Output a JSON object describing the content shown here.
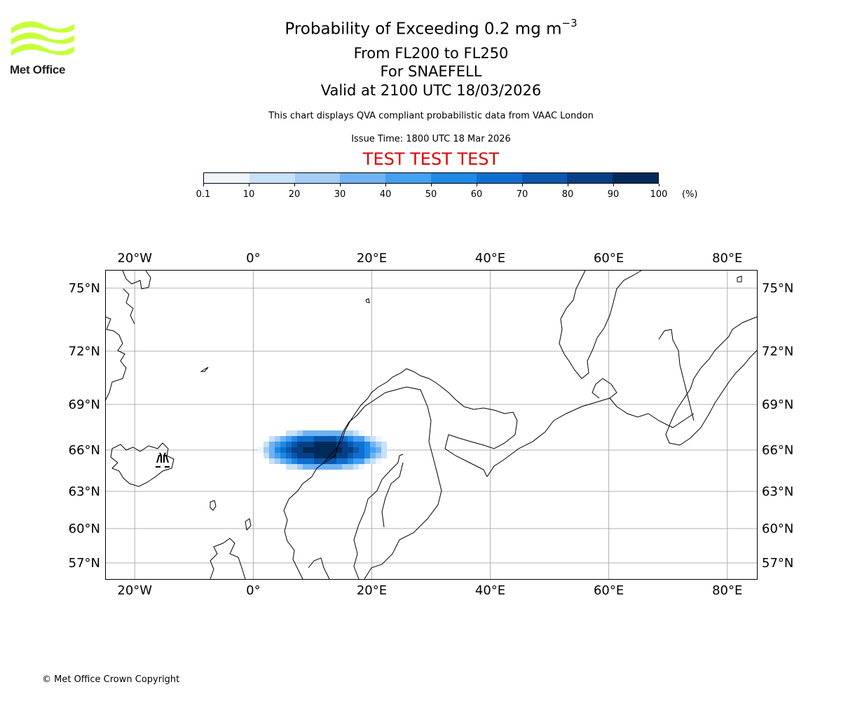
{
  "branding": {
    "logo_text": "Met Office"
  },
  "header": {
    "title": "Probability of Exceeding 0.2 mg m",
    "title_superscript": "−3",
    "flight_levels": "From FL200 to FL250",
    "volcano": "For SNAEFELL",
    "valid_time": "Valid at 2100 UTC 18/03/2026",
    "description": "This chart displays QVA compliant probabilistic data from VAAC London",
    "issue_time": "Issue Time: 1800 UTC 18 Mar 2026",
    "test_banner": "TEST TEST TEST"
  },
  "colorbar": {
    "unit": "(%)",
    "ticks": [
      "0.1",
      "10",
      "20",
      "30",
      "40",
      "50",
      "60",
      "70",
      "80",
      "90",
      "100"
    ],
    "colors": [
      "#eef5fd",
      "#c8e0f8",
      "#a2cdf5",
      "#6fb3f2",
      "#44a0f0",
      "#1e88e5",
      "#0f6fd0",
      "#0a57ad",
      "#063f85",
      "#012a5a"
    ]
  },
  "map": {
    "lon_range": [
      -25,
      85
    ],
    "lat_range": [
      55.5,
      76
    ],
    "lon_labels": [
      "20°W",
      "0°",
      "20°E",
      "40°E",
      "60°E",
      "80°E"
    ],
    "lat_labels": [
      "75°N",
      "72°N",
      "69°N",
      "66°N",
      "63°N",
      "60°N",
      "57°N"
    ],
    "volcano_marker": "volcano-icon",
    "ash_probability": [
      {
        "lat": 65.0,
        "lon": 5,
        "p": 10
      },
      {
        "lat": 65.0,
        "lon": 20,
        "p": 10
      },
      {
        "lat": 66.0,
        "lon": 4,
        "p": 30
      },
      {
        "lat": 66.0,
        "lon": 10,
        "p": 90
      },
      {
        "lat": 66.0,
        "lon": 16,
        "p": 80
      },
      {
        "lat": 66.5,
        "lon": 12,
        "p": 100
      },
      {
        "lat": 67.0,
        "lon": 15,
        "p": 40
      },
      {
        "lat": 67.5,
        "lon": 18,
        "p": 10
      }
    ]
  },
  "footer": {
    "copyright": "© Met Office Crown Copyright"
  }
}
